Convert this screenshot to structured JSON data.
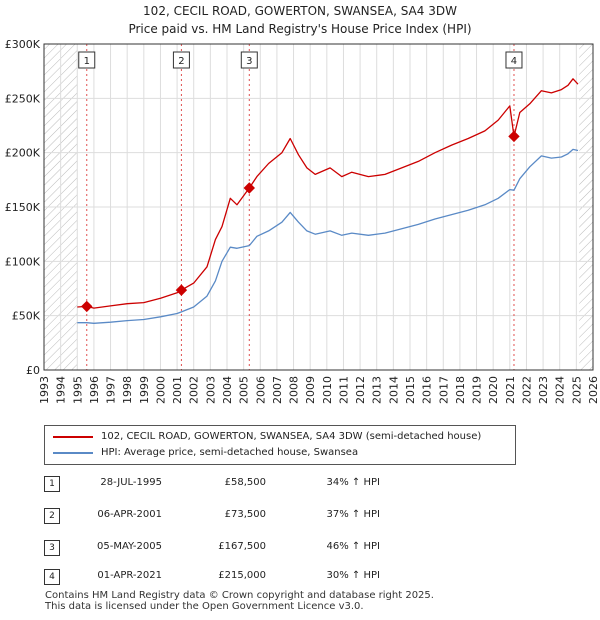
{
  "chart_data": {
    "type": "line",
    "title": "102, CECIL ROAD, GOWERTON, SWANSEA, SA4 3DW",
    "subtitle": "Price paid vs. HM Land Registry's House Price Index (HPI)",
    "xlim": [
      1993,
      2026
    ],
    "ylim": [
      0,
      300000
    ],
    "x_ticks": [
      "1993",
      "1994",
      "1995",
      "1996",
      "1997",
      "1998",
      "1999",
      "2000",
      "2001",
      "2002",
      "2003",
      "2004",
      "2005",
      "2006",
      "2007",
      "2008",
      "2009",
      "2010",
      "2011",
      "2012",
      "2013",
      "2014",
      "2015",
      "2016",
      "2017",
      "2018",
      "2019",
      "2020",
      "2021",
      "2022",
      "2023",
      "2024",
      "2025",
      "2026"
    ],
    "y_ticks": [
      {
        "value": 0,
        "label": "£0"
      },
      {
        "value": 50000,
        "label": "£50K"
      },
      {
        "value": 100000,
        "label": "£100K"
      },
      {
        "value": 150000,
        "label": "£150K"
      },
      {
        "value": 200000,
        "label": "£200K"
      },
      {
        "value": 250000,
        "label": "£250K"
      },
      {
        "value": 300000,
        "label": "£300K"
      }
    ],
    "hatched_ranges": [
      [
        1993,
        1995.0
      ],
      [
        2025.17,
        2026
      ]
    ],
    "series": [
      {
        "name": "102, CECIL ROAD, GOWERTON, SWANSEA, SA4 3DW (semi-detached house)",
        "color": "#cc0000",
        "points": [
          [
            1995.0,
            58000
          ],
          [
            1995.57,
            58500
          ],
          [
            1996.0,
            57000
          ],
          [
            1997.0,
            59000
          ],
          [
            1998.0,
            61000
          ],
          [
            1999.0,
            62000
          ],
          [
            2000.0,
            66000
          ],
          [
            2001.0,
            71000
          ],
          [
            2001.26,
            73500
          ],
          [
            2002.0,
            80000
          ],
          [
            2002.8,
            95000
          ],
          [
            2003.3,
            120000
          ],
          [
            2003.7,
            132000
          ],
          [
            2004.2,
            158000
          ],
          [
            2004.6,
            152000
          ],
          [
            2005.34,
            167500
          ],
          [
            2005.8,
            178000
          ],
          [
            2006.5,
            190000
          ],
          [
            2007.3,
            200000
          ],
          [
            2007.8,
            213000
          ],
          [
            2008.3,
            198000
          ],
          [
            2008.8,
            186000
          ],
          [
            2009.3,
            180000
          ],
          [
            2010.2,
            186000
          ],
          [
            2010.9,
            178000
          ],
          [
            2011.5,
            182000
          ],
          [
            2012.5,
            178000
          ],
          [
            2013.5,
            180000
          ],
          [
            2014.5,
            186000
          ],
          [
            2015.5,
            192000
          ],
          [
            2016.5,
            200000
          ],
          [
            2017.5,
            207000
          ],
          [
            2018.5,
            213000
          ],
          [
            2019.5,
            220000
          ],
          [
            2020.3,
            230000
          ],
          [
            2021.0,
            243000
          ],
          [
            2021.25,
            215000
          ],
          [
            2021.6,
            237000
          ],
          [
            2022.2,
            245000
          ],
          [
            2022.9,
            257000
          ],
          [
            2023.5,
            255000
          ],
          [
            2024.1,
            258000
          ],
          [
            2024.5,
            262000
          ],
          [
            2024.8,
            268000
          ],
          [
            2025.1,
            263000
          ]
        ]
      },
      {
        "name": "HPI: Average price, semi-detached house, Swansea",
        "color": "#5a8ac6",
        "points": [
          [
            1995.0,
            43500
          ],
          [
            1995.57,
            43500
          ],
          [
            1996.0,
            43000
          ],
          [
            1997.0,
            44000
          ],
          [
            1998.0,
            45500
          ],
          [
            1999.0,
            46500
          ],
          [
            2000.0,
            49000
          ],
          [
            2001.0,
            52000
          ],
          [
            2001.26,
            53500
          ],
          [
            2002.0,
            58000
          ],
          [
            2002.8,
            68000
          ],
          [
            2003.3,
            82000
          ],
          [
            2003.7,
            100000
          ],
          [
            2004.2,
            113000
          ],
          [
            2004.6,
            112000
          ],
          [
            2005.34,
            114500
          ],
          [
            2005.8,
            123000
          ],
          [
            2006.5,
            128000
          ],
          [
            2007.3,
            136000
          ],
          [
            2007.8,
            145000
          ],
          [
            2008.3,
            136000
          ],
          [
            2008.8,
            128000
          ],
          [
            2009.3,
            125000
          ],
          [
            2010.2,
            128000
          ],
          [
            2010.9,
            124000
          ],
          [
            2011.5,
            126000
          ],
          [
            2012.5,
            124000
          ],
          [
            2013.5,
            126000
          ],
          [
            2014.5,
            130000
          ],
          [
            2015.5,
            134000
          ],
          [
            2016.5,
            139000
          ],
          [
            2017.5,
            143000
          ],
          [
            2018.5,
            147000
          ],
          [
            2019.5,
            152000
          ],
          [
            2020.3,
            158000
          ],
          [
            2021.0,
            166000
          ],
          [
            2021.25,
            165500
          ],
          [
            2021.6,
            176000
          ],
          [
            2022.2,
            187000
          ],
          [
            2022.9,
            197000
          ],
          [
            2023.5,
            195000
          ],
          [
            2024.1,
            196000
          ],
          [
            2024.5,
            199000
          ],
          [
            2024.8,
            203000
          ],
          [
            2025.1,
            202000
          ]
        ]
      }
    ],
    "sales": [
      {
        "id": "1",
        "x": 1995.57,
        "y": 58500
      },
      {
        "id": "2",
        "x": 2001.26,
        "y": 73500
      },
      {
        "id": "3",
        "x": 2005.34,
        "y": 167500
      },
      {
        "id": "4",
        "x": 2021.25,
        "y": 215000
      }
    ]
  },
  "legend": {
    "property_label": "102, CECIL ROAD, GOWERTON, SWANSEA, SA4 3DW (semi-detached house)",
    "hpi_label": "HPI: Average price, semi-detached house, Swansea"
  },
  "transactions": [
    {
      "num": "1",
      "date": "28-JUL-1995",
      "price": "£58,500",
      "hpi": "34% ↑ HPI"
    },
    {
      "num": "2",
      "date": "06-APR-2001",
      "price": "£73,500",
      "hpi": "37% ↑ HPI"
    },
    {
      "num": "3",
      "date": "05-MAY-2005",
      "price": "£167,500",
      "hpi": "46% ↑ HPI"
    },
    {
      "num": "4",
      "date": "01-APR-2021",
      "price": "£215,000",
      "hpi": "30% ↑ HPI"
    }
  ],
  "footer": {
    "line1": "Contains HM Land Registry data © Crown copyright and database right 2025.",
    "line2": "This data is licensed under the Open Government Licence v3.0."
  }
}
